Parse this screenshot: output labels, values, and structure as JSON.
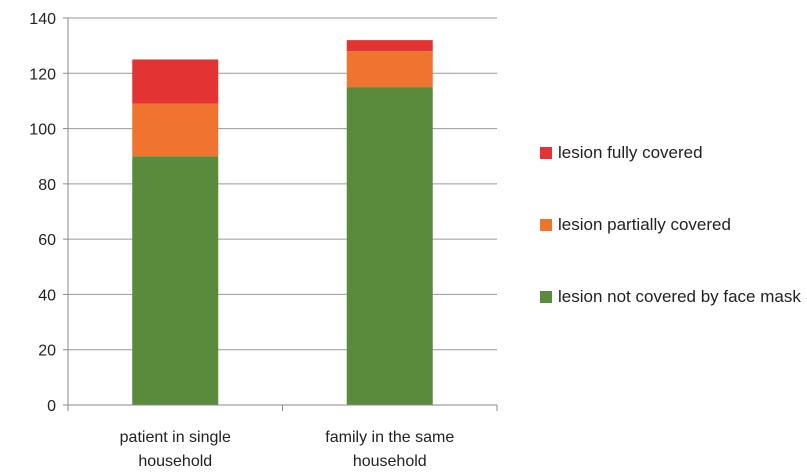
{
  "chart_data": {
    "type": "bar",
    "stacked": true,
    "categories": [
      [
        "patient in single",
        "household"
      ],
      [
        "family in the same",
        "household"
      ]
    ],
    "series": [
      {
        "name": "lesion not covered by face mask",
        "color": "#5a8a3c",
        "values": [
          90,
          115
        ]
      },
      {
        "name": "lesion partially covered",
        "color": "#ee7430",
        "values": [
          19,
          13
        ]
      },
      {
        "name": "lesion fully covered",
        "color": "#e33332",
        "values": [
          16,
          4
        ]
      }
    ],
    "title": "",
    "xlabel": "",
    "ylabel": "",
    "ylim": [
      0,
      140
    ],
    "yticks": [
      0,
      20,
      40,
      60,
      80,
      100,
      120,
      140
    ],
    "grid": true,
    "legend_position": "right"
  }
}
